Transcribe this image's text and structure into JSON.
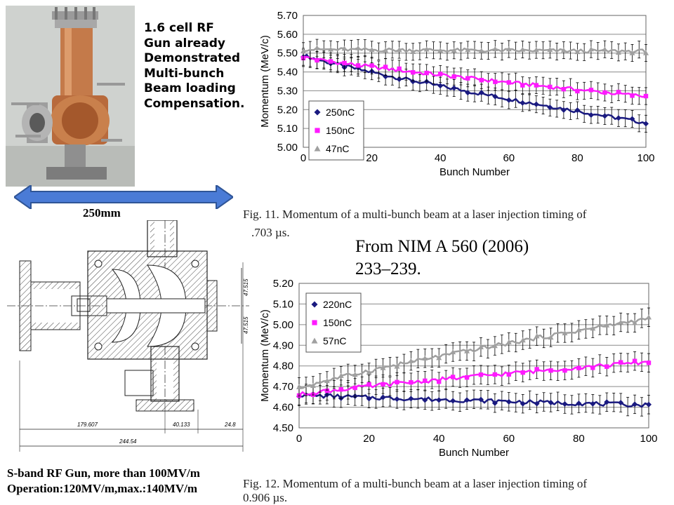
{
  "photo_caption": "1.6 cell RF\nGun already\nDemonstrated\nMulti-bunch\nBeam loading\nCompensation.",
  "dimension_label": "250mm",
  "drawing_dimensions": {
    "d1": "179.607",
    "d2": "40.133",
    "d3": "24.8",
    "d4": "244.54",
    "d5": "47.515",
    "d6": "47.515"
  },
  "reference": "From NIM A 560 (2006)\n233–239.",
  "gun_spec": "S-band RF Gun,  more than 100MV/m\nOperation:120MV/m,max.:140MV/m",
  "fig1_caption_line1": "Fig. 11.  Momentum of a multi-bunch beam at a laser injection timing of",
  "fig1_caption_line2": ".703 µs.",
  "fig2_caption_line1": "Fig. 12.  Momentum of a multi-bunch beam at a laser injection timing of",
  "fig2_caption_line2": "0.906 µs.",
  "chart_data": [
    {
      "type": "line",
      "title": "",
      "xlabel": "Bunch Number",
      "ylabel": "Momentum (MeV/c)",
      "xlim": [
        0,
        100
      ],
      "ylim": [
        5.0,
        5.7
      ],
      "xticks": [
        "0",
        "20",
        "40",
        "60",
        "80",
        "100"
      ],
      "yticks": [
        "5.00",
        "5.10",
        "5.20",
        "5.30",
        "5.40",
        "5.50",
        "5.60",
        "5.70"
      ],
      "grid": true,
      "legend_position": "bottom-left",
      "error_bar": 0.045,
      "series": [
        {
          "name": "250nC",
          "color": "#1a1a80",
          "marker": "diamond",
          "start": 5.49,
          "end": 5.13
        },
        {
          "name": "150nC",
          "color": "#ff1aff",
          "marker": "square",
          "start": 5.48,
          "end": 5.27
        },
        {
          "name": "47nC",
          "color": "#a0a0a0",
          "marker": "triangle",
          "start": 5.52,
          "end": 5.51
        }
      ]
    },
    {
      "type": "line",
      "title": "",
      "xlabel": "Bunch Number",
      "ylabel": "Momentum (MeV/c)",
      "xlim": [
        0,
        100
      ],
      "ylim": [
        4.5,
        5.2
      ],
      "xticks": [
        "0",
        "20",
        "40",
        "60",
        "80",
        "100"
      ],
      "yticks": [
        "4.50",
        "4.60",
        "4.70",
        "4.80",
        "4.90",
        "5.00",
        "5.10",
        "5.20"
      ],
      "grid": true,
      "legend_position": "top-left",
      "error_bar": 0.045,
      "series": [
        {
          "name": "220nC",
          "color": "#1a1a80",
          "marker": "diamond",
          "start": 4.66,
          "end": 4.61
        },
        {
          "name": "150nC",
          "color": "#ff1aff",
          "marker": "square",
          "start": 4.66,
          "end": 4.82
        },
        {
          "name": "57nC",
          "color": "#a0a0a0",
          "marker": "triangle",
          "start": 4.69,
          "end": 5.03
        }
      ]
    }
  ]
}
